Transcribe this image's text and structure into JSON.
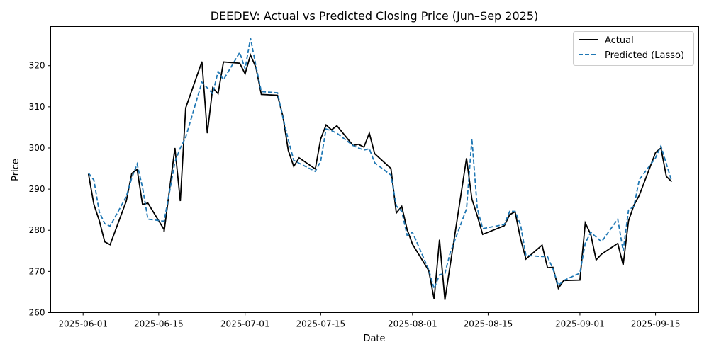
{
  "chart_data": {
    "type": "line",
    "title": "DEEDEV: Actual vs Predicted Closing Price (Jun–Sep 2025)",
    "xlabel": "Date",
    "ylabel": "Price",
    "xlim": [
      "2025-05-26",
      "2025-09-23"
    ],
    "ylim": [
      260,
      329.5
    ],
    "x_ticks": [
      "2025-06-01",
      "2025-06-15",
      "2025-07-01",
      "2025-07-15",
      "2025-08-01",
      "2025-08-15",
      "2025-09-01",
      "2025-09-15"
    ],
    "y_ticks": [
      260,
      270,
      280,
      290,
      300,
      310,
      320
    ],
    "grid": false,
    "legend_position": "upper-right",
    "series": [
      {
        "name": "Actual",
        "color": "#000000",
        "style": "solid",
        "points": [
          [
            "2025-06-02",
            293.7
          ],
          [
            "2025-06-03",
            286.3
          ],
          [
            "2025-06-04",
            282.3
          ],
          [
            "2025-06-05",
            277.2
          ],
          [
            "2025-06-06",
            276.5
          ],
          [
            "2025-06-09",
            287.1
          ],
          [
            "2025-06-10",
            293.8
          ],
          [
            "2025-06-11",
            294.8
          ],
          [
            "2025-06-12",
            286.3
          ],
          [
            "2025-06-13",
            286.6
          ],
          [
            "2025-06-16",
            280.2
          ],
          [
            "2025-06-16",
            279.6
          ],
          [
            "2025-06-18",
            300.0
          ],
          [
            "2025-06-19",
            287.1
          ],
          [
            "2025-06-20",
            309.7
          ],
          [
            "2025-06-23",
            321.0
          ],
          [
            "2025-06-24",
            303.6
          ],
          [
            "2025-06-25",
            314.6
          ],
          [
            "2025-06-26",
            313.2
          ],
          [
            "2025-06-27",
            320.9
          ],
          [
            "2025-06-30",
            320.6
          ],
          [
            "2025-07-01",
            318.0
          ],
          [
            "2025-07-02",
            322.6
          ],
          [
            "2025-07-03",
            319.6
          ],
          [
            "2025-07-04",
            313.0
          ],
          [
            "2025-07-07",
            312.8
          ],
          [
            "2025-07-08",
            307.7
          ],
          [
            "2025-07-09",
            299.4
          ],
          [
            "2025-07-10",
            295.5
          ],
          [
            "2025-07-11",
            297.6
          ],
          [
            "2025-07-14",
            294.9
          ],
          [
            "2025-07-15",
            302.2
          ],
          [
            "2025-07-16",
            305.6
          ],
          [
            "2025-07-17",
            304.4
          ],
          [
            "2025-07-18",
            305.4
          ],
          [
            "2025-07-21",
            300.6
          ],
          [
            "2025-07-22",
            300.9
          ],
          [
            "2025-07-23",
            300.2
          ],
          [
            "2025-07-24",
            303.6
          ],
          [
            "2025-07-25",
            298.6
          ],
          [
            "2025-07-28",
            295.0
          ],
          [
            "2025-07-29",
            284.2
          ],
          [
            "2025-07-30",
            285.8
          ],
          [
            "2025-07-31",
            280.2
          ],
          [
            "2025-08-01",
            276.6
          ],
          [
            "2025-08-04",
            270.2
          ],
          [
            "2025-08-05",
            263.3
          ],
          [
            "2025-08-06",
            277.7
          ],
          [
            "2025-08-07",
            263.1
          ],
          [
            "2025-08-11",
            297.5
          ],
          [
            "2025-08-12",
            287.6
          ],
          [
            "2025-08-13",
            283.5
          ],
          [
            "2025-08-14",
            279.0
          ],
          [
            "2025-08-18",
            281.1
          ],
          [
            "2025-08-19",
            283.8
          ],
          [
            "2025-08-20",
            284.5
          ],
          [
            "2025-08-21",
            278.0
          ],
          [
            "2025-08-22",
            273.0
          ],
          [
            "2025-08-25",
            276.4
          ],
          [
            "2025-08-26",
            270.9
          ],
          [
            "2025-08-27",
            271.0
          ],
          [
            "2025-08-28",
            265.9
          ],
          [
            "2025-08-29",
            267.8
          ],
          [
            "2025-09-01",
            267.9
          ],
          [
            "2025-09-02",
            281.8
          ],
          [
            "2025-09-03",
            279.0
          ],
          [
            "2025-09-04",
            272.8
          ],
          [
            "2025-09-05",
            274.2
          ],
          [
            "2025-09-08",
            276.8
          ],
          [
            "2025-09-09",
            271.6
          ],
          [
            "2025-09-10",
            282.3
          ],
          [
            "2025-09-11",
            286.1
          ],
          [
            "2025-09-12",
            288.5
          ],
          [
            "2025-09-15",
            298.9
          ],
          [
            "2025-09-16",
            300.0
          ],
          [
            "2025-09-17",
            293.1
          ],
          [
            "2025-09-18",
            291.8
          ]
        ]
      },
      {
        "name": "Predicted (Lasso)",
        "color": "#1f77b4",
        "style": "dashed",
        "points": [
          [
            "2025-06-02",
            293.9
          ],
          [
            "2025-06-03",
            292.2
          ],
          [
            "2025-06-04",
            284.4
          ],
          [
            "2025-06-05",
            281.6
          ],
          [
            "2025-06-06",
            281.0
          ],
          [
            "2025-06-09",
            288.2
          ],
          [
            "2025-06-10",
            292.7
          ],
          [
            "2025-06-11",
            296.1
          ],
          [
            "2025-06-12",
            290.4
          ],
          [
            "2025-06-13",
            282.7
          ],
          [
            "2025-06-16",
            282.2
          ],
          [
            "2025-06-17",
            289.3
          ],
          [
            "2025-06-18",
            296.6
          ],
          [
            "2025-06-19",
            300.0
          ],
          [
            "2025-06-20",
            302.6
          ],
          [
            "2025-06-23",
            316.0
          ],
          [
            "2025-06-24",
            314.6
          ],
          [
            "2025-06-25",
            313.2
          ],
          [
            "2025-06-26",
            318.6
          ],
          [
            "2025-06-27",
            316.6
          ],
          [
            "2025-06-30",
            323.2
          ],
          [
            "2025-07-01",
            319.2
          ],
          [
            "2025-07-02",
            326.7
          ],
          [
            "2025-07-03",
            320.0
          ],
          [
            "2025-07-04",
            313.7
          ],
          [
            "2025-07-07",
            313.4
          ],
          [
            "2025-07-08",
            307.4
          ],
          [
            "2025-07-09",
            302.0
          ],
          [
            "2025-07-10",
            297.0
          ],
          [
            "2025-07-11",
            296.3
          ],
          [
            "2025-07-14",
            294.3
          ],
          [
            "2025-07-15",
            296.8
          ],
          [
            "2025-07-16",
            304.6
          ],
          [
            "2025-07-17",
            304.2
          ],
          [
            "2025-07-18",
            303.6
          ],
          [
            "2025-07-21",
            300.6
          ],
          [
            "2025-07-22",
            300.0
          ],
          [
            "2025-07-23",
            299.5
          ],
          [
            "2025-07-24",
            299.8
          ],
          [
            "2025-07-25",
            296.4
          ],
          [
            "2025-07-28",
            293.4
          ],
          [
            "2025-07-29",
            285.9
          ],
          [
            "2025-07-30",
            284.6
          ],
          [
            "2025-07-31",
            278.8
          ],
          [
            "2025-08-01",
            279.5
          ],
          [
            "2025-08-04",
            270.4
          ],
          [
            "2025-08-05",
            265.8
          ],
          [
            "2025-08-06",
            269.2
          ],
          [
            "2025-08-07",
            269.5
          ],
          [
            "2025-08-08",
            274.6
          ],
          [
            "2025-08-11",
            285.2
          ],
          [
            "2025-08-12",
            302.2
          ],
          [
            "2025-08-13",
            285.3
          ],
          [
            "2025-08-14",
            280.4
          ],
          [
            "2025-08-18",
            281.4
          ],
          [
            "2025-08-19",
            284.6
          ],
          [
            "2025-08-20",
            284.6
          ],
          [
            "2025-08-21",
            281.4
          ],
          [
            "2025-08-22",
            273.9
          ],
          [
            "2025-08-25",
            273.6
          ],
          [
            "2025-08-26",
            273.6
          ],
          [
            "2025-08-27",
            270.6
          ],
          [
            "2025-08-28",
            266.6
          ],
          [
            "2025-08-29",
            267.8
          ],
          [
            "2025-09-01",
            269.6
          ],
          [
            "2025-09-02",
            276.9
          ],
          [
            "2025-09-03",
            279.5
          ],
          [
            "2025-09-05",
            277.2
          ],
          [
            "2025-09-08",
            282.7
          ],
          [
            "2025-09-09",
            275.0
          ],
          [
            "2025-09-10",
            284.9
          ],
          [
            "2025-09-11",
            285.8
          ],
          [
            "2025-09-12",
            292.3
          ],
          [
            "2025-09-15",
            297.6
          ],
          [
            "2025-09-16",
            300.5
          ],
          [
            "2025-09-17",
            296.2
          ],
          [
            "2025-09-18",
            291.9
          ]
        ]
      }
    ]
  }
}
